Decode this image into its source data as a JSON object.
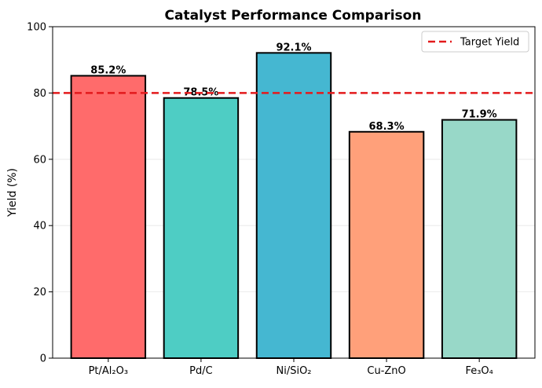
{
  "chart_data": {
    "type": "bar",
    "title": "Catalyst Performance Comparison",
    "xlabel": "",
    "ylabel": "Yield (%)",
    "ylim": [
      0,
      100
    ],
    "yticks": [
      0,
      20,
      40,
      60,
      80,
      100
    ],
    "categories": [
      "Pt/Al₂O₃",
      "Pd/C",
      "Ni/SiO₂",
      "Cu-ZnO",
      "Fe₃O₄"
    ],
    "values": [
      85.2,
      78.5,
      92.1,
      68.3,
      71.9
    ],
    "value_labels": [
      "85.2%",
      "78.5%",
      "92.1%",
      "68.3%",
      "71.9%"
    ],
    "colors": [
      "#ff6b6b",
      "#4ecdc4",
      "#45b7d1",
      "#ffa07a",
      "#98d8c8"
    ],
    "reference_line": {
      "value": 80,
      "label": "Target Yield",
      "color": "#e31a1c",
      "style": "dashed"
    },
    "grid": {
      "y": true,
      "x": false
    },
    "legend": {
      "position": "top-right",
      "entries": [
        "Target Yield"
      ]
    }
  }
}
